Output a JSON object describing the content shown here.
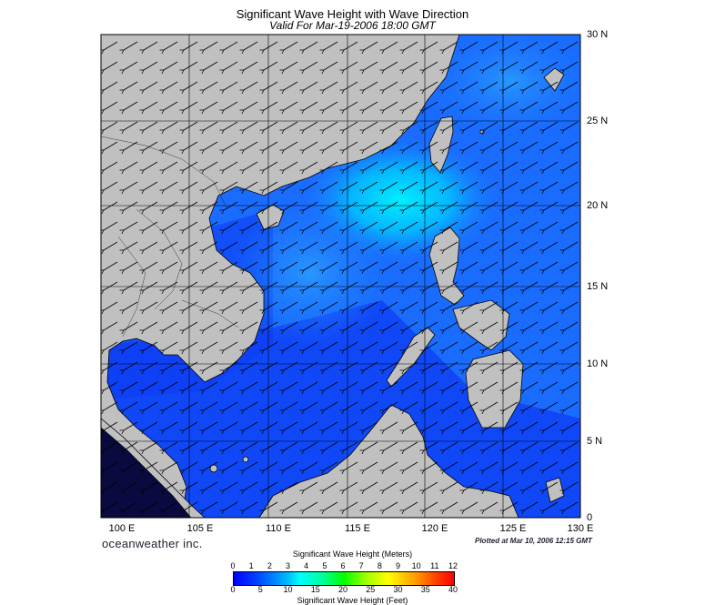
{
  "title": "Significant Wave Height with Wave Direction",
  "subtitle": "Valid For Mar-19-2006 18:00 GMT",
  "lat_labels": [
    "30 N",
    "25 N",
    "20 N",
    "15 N",
    "10 N",
    "5 N",
    "0"
  ],
  "lon_labels": [
    "100 E",
    "105 E",
    "110 E",
    "115 E",
    "120 E",
    "125 E",
    "130 E"
  ],
  "brand": "oceanweather inc.",
  "plotted": "Plotted at Mar 10, 2006 12:15 GMT",
  "colorbar": {
    "title_meters": "Significant Wave Height (Meters)",
    "title_feet": "Significant Wave Height (Feet)",
    "meters_ticks": [
      "0",
      "1",
      "2",
      "3",
      "4",
      "5",
      "6",
      "7",
      "8",
      "9",
      "10",
      "11",
      "12"
    ],
    "feet_ticks": [
      "0",
      "5",
      "10",
      "15",
      "20",
      "25",
      "30",
      "35",
      "40"
    ]
  },
  "colors": {
    "land": "#c0c0c0",
    "sea_deep": "#0a1cf0",
    "sea_mid": "#1a78ff",
    "sea_high": "#00e6ff"
  }
}
